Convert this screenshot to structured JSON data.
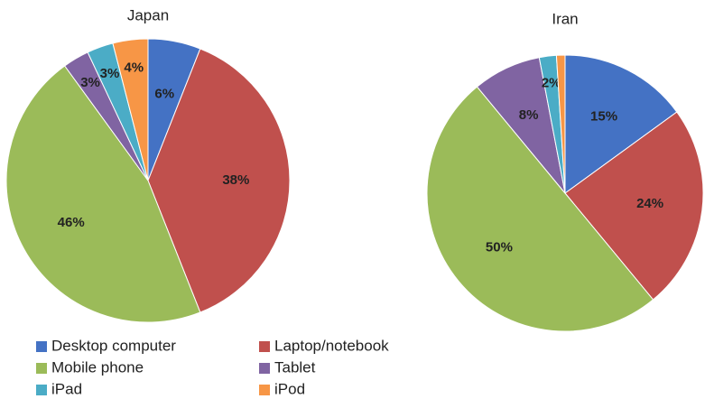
{
  "chart_data": [
    {
      "type": "pie",
      "title": "Japan",
      "values": [
        6,
        38,
        46,
        3,
        3,
        4
      ],
      "value_labels": [
        "6%",
        "38%",
        "46%",
        "3%",
        "3%",
        "4%"
      ]
    },
    {
      "type": "pie",
      "title": "Iran",
      "values": [
        15,
        24,
        50,
        8,
        2,
        1
      ],
      "value_labels": [
        "15%",
        "24%",
        "50%",
        "8%",
        "2%",
        null
      ]
    }
  ],
  "legend": {
    "labels": [
      "Desktop computer",
      "Laptop/notebook",
      "Mobile phone",
      "Tablet",
      "iPad",
      "iPod"
    ],
    "colors": [
      "#4472c4",
      "#c0504d",
      "#9bbb59",
      "#8064a2",
      "#4bacc6",
      "#f79646"
    ]
  }
}
